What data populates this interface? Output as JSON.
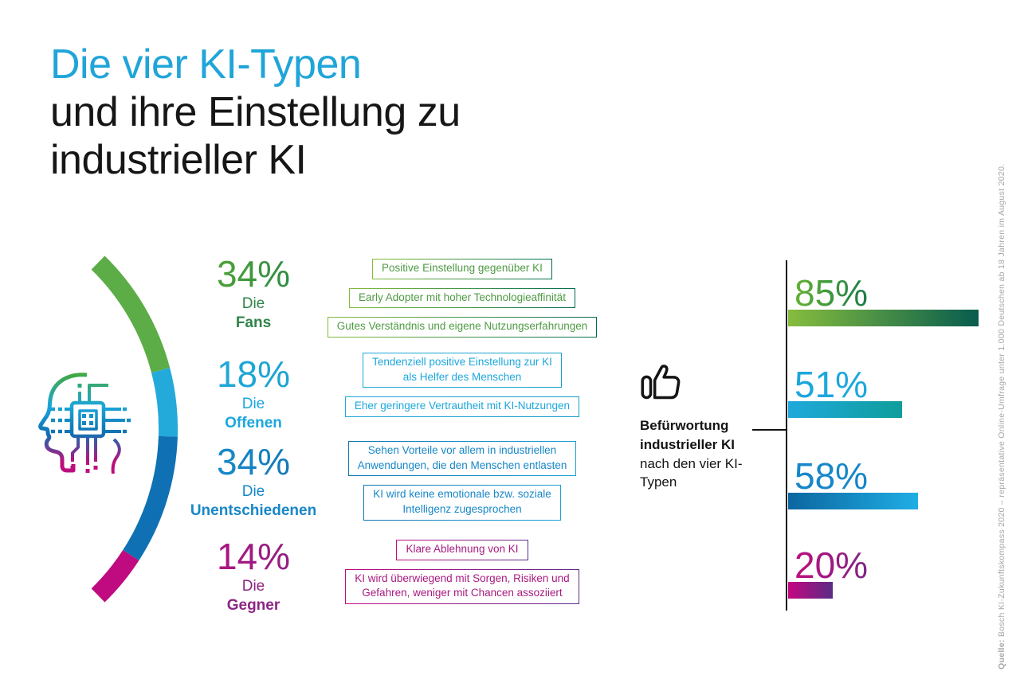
{
  "title": {
    "line1": "Die vier KI-Typen",
    "line2": "und ihre Einstellung zu",
    "line3": "industrieller KI"
  },
  "colors": {
    "accent_blue": "#20A5D9",
    "green": "#5CAD47",
    "light_blue": "#24A9DB",
    "blue": "#0F71B3",
    "magenta": "#C00A80",
    "text_dark": "#141414",
    "source_gray": "#A7A7A7"
  },
  "icons": {
    "head": "head-circuit-icon",
    "thumb": "thumbs-up-icon",
    "arc": "ki-types-share-arc"
  },
  "groups": [
    {
      "pct": "34%",
      "article": "Die",
      "name": "Fans",
      "boxes": [
        "Positive Einstellung gegenüber KI",
        "Early Adopter mit hoher Technologieaffinität",
        "Gutes Verständnis und eigene Nutzungserfahrungen"
      ]
    },
    {
      "pct": "18%",
      "article": "Die",
      "name": "Offenen",
      "boxes": [
        "Tendenziell positive Einstellung zur KI\nals Helfer des Menschen",
        "Eher geringere Vertrautheit mit KI-Nutzungen"
      ]
    },
    {
      "pct": "34%",
      "article": "Die",
      "name": "Unentschiedenen",
      "boxes": [
        "Sehen Vorteile vor allem in industriellen\nAnwendungen, die den Menschen entlasten",
        "KI wird keine emotionale bzw. soziale\nIntelligenz zugesprochen"
      ]
    },
    {
      "pct": "14%",
      "article": "Die",
      "name": "Gegner",
      "boxes": [
        "Klare Ablehnung von KI",
        "KI wird überwiegend mit Sorgen, Risiken und\nGefahren, weniger mit Chancen assoziiert"
      ]
    }
  ],
  "callout": {
    "bold": "Befürwortung industrieller KI",
    "regular": " nach den vier KI-Typen"
  },
  "chart_data": [
    {
      "type": "pie",
      "title": "Die vier KI-Typen – Anteile",
      "categories": [
        "Die Fans",
        "Die Offenen",
        "Die Unentschiedenen",
        "Die Gegner"
      ],
      "values": [
        34,
        18,
        34,
        14
      ],
      "unit": "%",
      "colors": [
        "#5CAD47",
        "#24A9DB",
        "#0F71B3",
        "#C00A80"
      ]
    },
    {
      "type": "bar",
      "orientation": "horizontal",
      "title": "Befürwortung industrieller KI nach den vier KI-Typen",
      "categories": [
        "Die Fans",
        "Die Offenen",
        "Die Unentschiedenen",
        "Die Gegner"
      ],
      "values": [
        85,
        51,
        58,
        20
      ],
      "labels": [
        "85%",
        "51%",
        "58%",
        "20%"
      ],
      "xlim": [
        0,
        100
      ],
      "unit": "%",
      "grid": false,
      "legend": false,
      "colors_start": [
        "#86BD3E",
        "#1FA9DC",
        "#0C66A0",
        "#C50682"
      ],
      "colors_end": [
        "#075C4E",
        "#0E9E9B",
        "#1FAEE5",
        "#5A2C85"
      ]
    }
  ],
  "source": {
    "label": "Quelle:",
    "text": " Bosch KI-Zukunftskompass 2020 – repräsentative Online-Umfrage unter 1.000 Deutschen ab 18 Jahren im August 2020."
  }
}
